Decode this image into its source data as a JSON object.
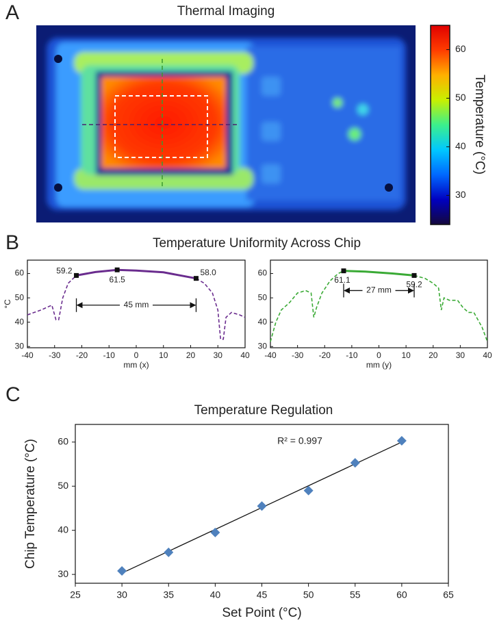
{
  "panel_labels": [
    "A",
    "B",
    "C"
  ],
  "uniformity_title": "Temperature Uniformity Across Chip",
  "chart_data": [
    {
      "type": "thermal-image",
      "title": "Thermal Imaging",
      "colorbar_label": "Temperature (°C)",
      "clim": [
        24,
        65
      ],
      "cticks": [
        30,
        40,
        50,
        60
      ],
      "colormap": [
        "#14083c",
        "#0000c0",
        "#0068ff",
        "#00c8ff",
        "#3cf08c",
        "#c8f000",
        "#ffb000",
        "#ff3c00",
        "#e00000"
      ]
    },
    {
      "type": "line",
      "xlabel": "mm (x)",
      "ylabel": "°C",
      "xlim": [
        -40,
        40
      ],
      "xticks": [
        -40,
        -30,
        -20,
        -10,
        0,
        10,
        20,
        30,
        40
      ],
      "ylim": [
        29.5,
        65.5
      ],
      "yticks": [
        30,
        40,
        50,
        60
      ],
      "series": [
        {
          "color": "#6a2c8e",
          "style": "dashed",
          "x": [
            -40,
            -35,
            -31,
            -29.5,
            -28.5,
            -27,
            -25,
            -22
          ],
          "values": [
            43,
            45,
            47,
            41,
            41,
            50,
            56,
            59.2
          ]
        },
        {
          "color": "#6a2c8e",
          "style": "solid",
          "x": [
            -22,
            -15,
            -7,
            0,
            10,
            22
          ],
          "values": [
            59.2,
            60.6,
            61.5,
            61.2,
            60.5,
            58.0
          ]
        },
        {
          "color": "#6a2c8e",
          "style": "dashed",
          "x": [
            22,
            25,
            28,
            30,
            31,
            32,
            33,
            35,
            38,
            40
          ],
          "values": [
            58.0,
            56,
            52,
            45,
            33,
            33,
            42,
            44,
            43,
            42
          ]
        }
      ],
      "markers": {
        "x": [
          -22,
          -7,
          22
        ],
        "values": [
          59.2,
          61.5,
          58.0
        ],
        "value_labels": [
          "59.2",
          "61.5",
          "58.0"
        ]
      },
      "span": {
        "x": [
          -22,
          22
        ],
        "y": 47,
        "label": "45 mm"
      }
    },
    {
      "type": "line",
      "xlabel": "mm (y)",
      "xlim": [
        -40,
        40
      ],
      "xticks": [
        -40,
        -30,
        -20,
        -10,
        0,
        10,
        20,
        30,
        40
      ],
      "ylim": [
        29.5,
        65.5
      ],
      "yticks": [
        30,
        40,
        50,
        60
      ],
      "series": [
        {
          "color": "#3aaa35",
          "style": "dashed",
          "x": [
            -40,
            -38,
            -36,
            -33,
            -30,
            -27,
            -25,
            -24,
            -23,
            -21,
            -18,
            -15,
            -13
          ],
          "values": [
            32,
            40,
            45,
            48,
            52,
            53,
            52,
            42,
            46,
            52,
            57,
            60,
            61.1
          ]
        },
        {
          "color": "#3aaa35",
          "style": "solid",
          "x": [
            -13,
            -5,
            5,
            13
          ],
          "values": [
            61.1,
            60.8,
            60,
            59.2
          ]
        },
        {
          "color": "#3aaa35",
          "style": "dashed",
          "x": [
            13,
            17,
            20,
            22,
            23,
            24,
            26,
            29,
            31,
            33,
            35,
            38,
            40
          ],
          "values": [
            59.2,
            58,
            56,
            54,
            45,
            50,
            49,
            49,
            46,
            44,
            44,
            38,
            32
          ]
        }
      ],
      "markers": {
        "x": [
          -13,
          13
        ],
        "values": [
          61.1,
          59.2
        ],
        "value_labels": [
          "61.1",
          "59.2"
        ]
      },
      "span": {
        "x": [
          -13,
          13
        ],
        "y": 53,
        "label": "27 mm"
      }
    },
    {
      "type": "scatter",
      "title": "Temperature Regulation",
      "xlabel": "Set Point (°C)",
      "ylabel": "Chip Temperature (°C)",
      "xlim": [
        25,
        65
      ],
      "xticks": [
        25,
        30,
        35,
        40,
        45,
        50,
        55,
        60,
        65
      ],
      "ylim": [
        28,
        64
      ],
      "yticks": [
        30,
        40,
        50,
        60
      ],
      "color": "#4f81bd",
      "x": [
        30,
        35,
        40,
        45,
        50,
        55,
        60
      ],
      "values": [
        30.8,
        35,
        39.5,
        45.5,
        49,
        55.3,
        60.3
      ],
      "fit": {
        "x": [
          30,
          60
        ],
        "values": [
          30.3,
          60
        ]
      },
      "annotation": "R² = 0.997"
    }
  ]
}
